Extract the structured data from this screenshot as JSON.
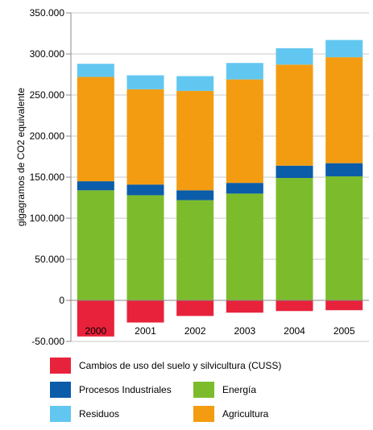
{
  "chart_data": {
    "type": "bar",
    "stacked": true,
    "title": "",
    "xlabel": "",
    "ylabel": "gigagramos  de CO2 equivalente",
    "ylim": [
      -50000,
      350000
    ],
    "yticks": [
      "350.000",
      "300.000",
      "250.000",
      "200.000",
      "150.000",
      "100.000",
      "50.000",
      "0",
      "-50.000"
    ],
    "ytick_values": [
      350000,
      300000,
      250000,
      200000,
      150000,
      100000,
      50000,
      0,
      -50000
    ],
    "grid": true,
    "legend_position": "bottom",
    "categories": [
      "2000",
      "2001",
      "2002",
      "2003",
      "2004",
      "2005"
    ],
    "series": [
      {
        "name": "Cambios de uso del suelo y silvicultura (CUSS)",
        "color": "#e8223a",
        "values": [
          -44000,
          -27000,
          -19000,
          -15000,
          -13000,
          -12000
        ]
      },
      {
        "name": "Energía",
        "color": "#7cbc2c",
        "values": [
          134000,
          128000,
          122000,
          130000,
          149000,
          151000
        ]
      },
      {
        "name": "Procesos Industriales",
        "color": "#0b5ca9",
        "values": [
          11000,
          13000,
          12000,
          13000,
          15000,
          16000
        ]
      },
      {
        "name": "Agricultura",
        "color": "#f39c12",
        "values": [
          127000,
          116000,
          121000,
          126000,
          123000,
          129000
        ]
      },
      {
        "name": "Residuos",
        "color": "#62c7f0",
        "values": [
          16000,
          17000,
          18000,
          20000,
          20000,
          21000
        ]
      }
    ]
  }
}
